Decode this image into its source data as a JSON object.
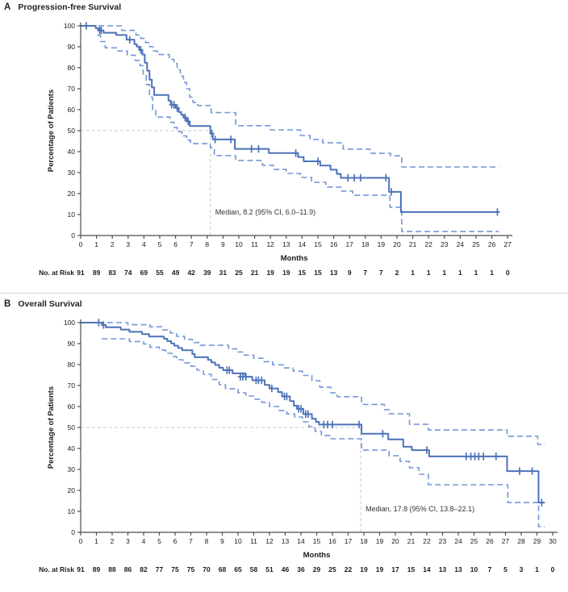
{
  "figure": {
    "colors": {
      "main_line": "#4c72b8",
      "ci_line": "#7297d6",
      "reference": "#c9c9c9",
      "axis": "#4c4c4c",
      "text": "#1a1a1a",
      "annotation_text": "#333333"
    }
  },
  "chart_data": [
    {
      "type": "line",
      "subtype": "kaplan-meier-step",
      "panel_label": "A",
      "title": "Progression-free Survival",
      "ylabel": "Percentage of Patients",
      "xlabel": "Months",
      "ylim": [
        0,
        100
      ],
      "xlim": [
        0,
        27
      ],
      "y_ticks": [
        0,
        10,
        20,
        30,
        40,
        50,
        60,
        70,
        80,
        90,
        100
      ],
      "x_ticks": [
        0,
        1,
        2,
        3,
        4,
        5,
        6,
        7,
        8,
        9,
        10,
        11,
        12,
        13,
        14,
        15,
        16,
        17,
        18,
        19,
        20,
        21,
        22,
        23,
        24,
        25,
        26,
        27
      ],
      "median_annotation": "Median, 8.2 (95% CI, 6.0–11.9)",
      "median_month": 8.2,
      "legend_position": "none",
      "grid": "50%-reference-only",
      "risk_label": "No. at Risk",
      "numbers_at_risk": [
        91,
        89,
        83,
        74,
        69,
        55,
        49,
        42,
        39,
        31,
        25,
        21,
        19,
        19,
        15,
        15,
        13,
        9,
        7,
        7,
        2,
        1,
        1,
        1,
        1,
        1,
        1,
        0
      ],
      "series": {
        "main": [
          [
            0,
            100
          ],
          [
            0.95,
            98.9
          ],
          [
            1.1,
            97.8
          ],
          [
            1.45,
            96.7
          ],
          [
            2.25,
            95.6
          ],
          [
            2.9,
            93.4
          ],
          [
            3.4,
            91.2
          ],
          [
            3.55,
            90.1
          ],
          [
            3.7,
            88.5
          ],
          [
            3.9,
            86.3
          ],
          [
            4.05,
            82.4
          ],
          [
            4.2,
            78.6
          ],
          [
            4.35,
            74.3
          ],
          [
            4.5,
            70.6
          ],
          [
            4.65,
            67.0
          ],
          [
            5.55,
            64.3
          ],
          [
            5.7,
            62.4
          ],
          [
            6.0,
            60.8
          ],
          [
            6.2,
            58.9
          ],
          [
            6.35,
            57.6
          ],
          [
            6.5,
            56.3
          ],
          [
            6.7,
            54.4
          ],
          [
            6.9,
            52.2
          ],
          [
            8.2,
            48.6
          ],
          [
            8.35,
            45.8
          ],
          [
            9.75,
            41.3
          ],
          [
            11.9,
            39.3
          ],
          [
            13.75,
            37.4
          ],
          [
            14.1,
            35.4
          ],
          [
            15.15,
            33.4
          ],
          [
            15.8,
            31.4
          ],
          [
            16.2,
            29.4
          ],
          [
            16.45,
            27.5
          ],
          [
            19.5,
            20.8
          ],
          [
            20.25,
            11.2
          ],
          [
            26.4,
            11.2
          ]
        ],
        "upper": [
          [
            0,
            100
          ],
          [
            2.6,
            97.8
          ],
          [
            3.5,
            95.6
          ],
          [
            3.8,
            94.0
          ],
          [
            4.1,
            92.0
          ],
          [
            4.35,
            90.0
          ],
          [
            4.6,
            88.0
          ],
          [
            4.85,
            86.3
          ],
          [
            5.6,
            84.0
          ],
          [
            5.9,
            82.0
          ],
          [
            6.1,
            79.0
          ],
          [
            6.3,
            76.0
          ],
          [
            6.5,
            73.0
          ],
          [
            6.7,
            70.0
          ],
          [
            6.9,
            66.0
          ],
          [
            7.1,
            63.5
          ],
          [
            7.4,
            62.0
          ],
          [
            8.25,
            58.6
          ],
          [
            9.8,
            52.4
          ],
          [
            12.0,
            50.4
          ],
          [
            13.9,
            47.7
          ],
          [
            14.5,
            45.8
          ],
          [
            15.3,
            44.2
          ],
          [
            16.6,
            41.2
          ],
          [
            18.3,
            39.2
          ],
          [
            19.6,
            38.0
          ],
          [
            20.3,
            32.7
          ],
          [
            26.45,
            32.7
          ]
        ],
        "lower": [
          [
            1.05,
            95.5
          ],
          [
            1.25,
            92.5
          ],
          [
            1.55,
            89.5
          ],
          [
            2.35,
            88.0
          ],
          [
            2.95,
            86.0
          ],
          [
            3.45,
            83.5
          ],
          [
            3.75,
            81.0
          ],
          [
            3.95,
            77.0
          ],
          [
            4.15,
            72.0
          ],
          [
            4.35,
            66.0
          ],
          [
            4.55,
            60.0
          ],
          [
            4.75,
            56.5
          ],
          [
            5.65,
            54.0
          ],
          [
            5.9,
            51.5
          ],
          [
            6.1,
            49.5
          ],
          [
            6.4,
            47.5
          ],
          [
            6.7,
            45.5
          ],
          [
            6.95,
            43.8
          ],
          [
            8.2,
            41.9
          ],
          [
            8.45,
            38.1
          ],
          [
            9.8,
            35.8
          ],
          [
            11.5,
            33.5
          ],
          [
            12.2,
            31.5
          ],
          [
            13.0,
            29.6
          ],
          [
            13.9,
            27.7
          ],
          [
            14.6,
            25.4
          ],
          [
            15.5,
            23.1
          ],
          [
            16.5,
            21.2
          ],
          [
            17.2,
            19.2
          ],
          [
            19.55,
            13.5
          ],
          [
            20.3,
            1.9
          ],
          [
            26.45,
            1.9
          ]
        ]
      },
      "censor_marks": [
        [
          0.35,
          100
        ],
        [
          1.2,
          97.8
        ],
        [
          1.3,
          97.8
        ],
        [
          3.1,
          93.4
        ],
        [
          3.8,
          88.5
        ],
        [
          5.75,
          62.4
        ],
        [
          5.9,
          62.4
        ],
        [
          6.1,
          60.8
        ],
        [
          6.6,
          56.3
        ],
        [
          6.8,
          54.4
        ],
        [
          8.3,
          48.6
        ],
        [
          8.5,
          45.8
        ],
        [
          9.5,
          45.8
        ],
        [
          10.8,
          41.3
        ],
        [
          11.25,
          41.3
        ],
        [
          13.6,
          39.3
        ],
        [
          15.0,
          35.4
        ],
        [
          16.9,
          27.5
        ],
        [
          17.3,
          27.5
        ],
        [
          17.7,
          27.5
        ],
        [
          19.3,
          27.5
        ],
        [
          19.65,
          20.8
        ],
        [
          26.35,
          11.2
        ]
      ]
    },
    {
      "type": "line",
      "subtype": "kaplan-meier-step",
      "panel_label": "B",
      "title": "Overall Survival",
      "ylabel": "Percentage of Patients",
      "xlabel": "Months",
      "ylim": [
        0,
        100
      ],
      "xlim": [
        0,
        30
      ],
      "y_ticks": [
        0,
        10,
        20,
        30,
        40,
        50,
        60,
        70,
        80,
        90,
        100
      ],
      "x_ticks": [
        0,
        1,
        2,
        3,
        4,
        5,
        6,
        7,
        8,
        9,
        10,
        11,
        12,
        13,
        14,
        15,
        16,
        17,
        18,
        19,
        20,
        21,
        22,
        23,
        24,
        25,
        26,
        27,
        28,
        29,
        30
      ],
      "median_annotation": "Median, 17.8 (95% CI, 13.8–22.1)",
      "median_month": 17.8,
      "legend_position": "none",
      "grid": "50%-reference-only",
      "risk_label": "No. at Risk",
      "numbers_at_risk": [
        91,
        89,
        88,
        86,
        82,
        77,
        75,
        75,
        70,
        68,
        65,
        58,
        51,
        46,
        36,
        29,
        25,
        22,
        19,
        19,
        17,
        15,
        14,
        13,
        13,
        10,
        7,
        5,
        3,
        1,
        0
      ],
      "series": {
        "main": [
          [
            0,
            100
          ],
          [
            1.35,
            98.9
          ],
          [
            1.6,
            97.8
          ],
          [
            2.55,
            96.7
          ],
          [
            3.1,
            95.6
          ],
          [
            3.9,
            94.5
          ],
          [
            4.35,
            93.4
          ],
          [
            5.3,
            92.3
          ],
          [
            5.5,
            91.2
          ],
          [
            5.75,
            90.1
          ],
          [
            5.95,
            89.0
          ],
          [
            6.2,
            87.9
          ],
          [
            6.45,
            86.8
          ],
          [
            7.1,
            85.0
          ],
          [
            7.25,
            83.5
          ],
          [
            8.1,
            82.2
          ],
          [
            8.3,
            81.0
          ],
          [
            8.55,
            79.8
          ],
          [
            8.8,
            78.5
          ],
          [
            9.05,
            77.3
          ],
          [
            9.65,
            75.8
          ],
          [
            10.45,
            74.2
          ],
          [
            10.9,
            72.5
          ],
          [
            11.7,
            70.3
          ],
          [
            12.0,
            68.6
          ],
          [
            12.55,
            66.9
          ],
          [
            12.8,
            64.8
          ],
          [
            13.3,
            62.6
          ],
          [
            13.55,
            60.4
          ],
          [
            13.75,
            58.9
          ],
          [
            14.15,
            56.4
          ],
          [
            14.7,
            54.2
          ],
          [
            14.95,
            52.7
          ],
          [
            15.15,
            51.4
          ],
          [
            17.85,
            47.0
          ],
          [
            19.55,
            44.3
          ],
          [
            20.5,
            40.8
          ],
          [
            21.05,
            39.2
          ],
          [
            22.15,
            36.2
          ],
          [
            27.1,
            29.2
          ],
          [
            29.1,
            14.2
          ],
          [
            29.5,
            14.2
          ]
        ],
        "upper": [
          [
            0,
            100
          ],
          [
            3.0,
            99.0
          ],
          [
            4.4,
            98.0
          ],
          [
            5.2,
            96.5
          ],
          [
            5.7,
            95.0
          ],
          [
            6.1,
            93.5
          ],
          [
            6.6,
            92.0
          ],
          [
            7.1,
            90.5
          ],
          [
            7.6,
            89.2
          ],
          [
            9.4,
            87.5
          ],
          [
            9.9,
            86.0
          ],
          [
            10.4,
            84.5
          ],
          [
            11.0,
            83.0
          ],
          [
            11.6,
            81.4
          ],
          [
            12.2,
            79.9
          ],
          [
            12.9,
            78.4
          ],
          [
            13.5,
            76.9
          ],
          [
            14.1,
            74.8
          ],
          [
            14.7,
            72.3
          ],
          [
            15.2,
            69.2
          ],
          [
            15.9,
            66.5
          ],
          [
            16.3,
            64.7
          ],
          [
            17.85,
            61.0
          ],
          [
            19.3,
            58.5
          ],
          [
            19.6,
            56.5
          ],
          [
            20.9,
            51.5
          ],
          [
            22.1,
            48.8
          ],
          [
            27.1,
            45.8
          ],
          [
            29.05,
            41.9
          ],
          [
            29.5,
            41.9
          ]
        ],
        "lower": [
          [
            1.35,
            92.3
          ],
          [
            3.1,
            91.0
          ],
          [
            4.0,
            89.8
          ],
          [
            4.4,
            88.3
          ],
          [
            5.0,
            86.9
          ],
          [
            5.4,
            85.4
          ],
          [
            5.8,
            83.8
          ],
          [
            6.1,
            82.3
          ],
          [
            6.5,
            80.8
          ],
          [
            7.0,
            79.2
          ],
          [
            7.4,
            77.3
          ],
          [
            7.8,
            75.4
          ],
          [
            8.3,
            72.9
          ],
          [
            8.8,
            70.4
          ],
          [
            9.2,
            68.5
          ],
          [
            10.0,
            66.5
          ],
          [
            10.5,
            65.0
          ],
          [
            11.0,
            63.5
          ],
          [
            11.5,
            62.0
          ],
          [
            12.0,
            60.0
          ],
          [
            12.6,
            58.1
          ],
          [
            13.1,
            56.5
          ],
          [
            13.6,
            55.0
          ],
          [
            14.1,
            52.7
          ],
          [
            14.5,
            50.4
          ],
          [
            14.9,
            48.1
          ],
          [
            15.3,
            46.2
          ],
          [
            15.9,
            44.6
          ],
          [
            17.85,
            39.2
          ],
          [
            19.6,
            36.5
          ],
          [
            20.3,
            33.8
          ],
          [
            20.9,
            30.8
          ],
          [
            21.5,
            27.7
          ],
          [
            22.1,
            22.7
          ],
          [
            27.15,
            14.2
          ],
          [
            29.1,
            2.7
          ],
          [
            29.5,
            2.7
          ]
        ]
      },
      "censor_marks": [
        [
          1.15,
          100
        ],
        [
          1.45,
          98.9
        ],
        [
          9.3,
          77.3
        ],
        [
          9.45,
          77.3
        ],
        [
          10.15,
          74.2
        ],
        [
          10.3,
          74.2
        ],
        [
          10.5,
          74.2
        ],
        [
          11.15,
          72.5
        ],
        [
          11.3,
          72.5
        ],
        [
          11.5,
          72.5
        ],
        [
          12.15,
          68.6
        ],
        [
          12.95,
          64.8
        ],
        [
          13.1,
          64.8
        ],
        [
          13.85,
          58.9
        ],
        [
          14.0,
          58.9
        ],
        [
          14.3,
          56.4
        ],
        [
          14.45,
          56.4
        ],
        [
          15.45,
          51.4
        ],
        [
          15.7,
          51.4
        ],
        [
          16.0,
          51.4
        ],
        [
          17.7,
          51.4
        ],
        [
          19.2,
          47.0
        ],
        [
          22.0,
          39.2
        ],
        [
          24.5,
          36.2
        ],
        [
          24.8,
          36.2
        ],
        [
          25.05,
          36.2
        ],
        [
          25.3,
          36.2
        ],
        [
          25.6,
          36.2
        ],
        [
          26.4,
          36.2
        ],
        [
          27.9,
          29.2
        ],
        [
          28.7,
          29.2
        ],
        [
          29.3,
          14.2
        ]
      ]
    }
  ]
}
